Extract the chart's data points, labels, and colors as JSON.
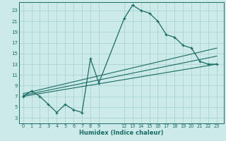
{
  "title": "",
  "xlabel": "Humidex (Indice chaleur)",
  "bg_color": "#cceae8",
  "grid_color": "#aad4d0",
  "line_color": "#1a6b65",
  "x_ticks": [
    0,
    1,
    2,
    3,
    4,
    5,
    6,
    7,
    8,
    9,
    12,
    13,
    14,
    15,
    16,
    17,
    18,
    19,
    20,
    21,
    22,
    23
  ],
  "y_ticks": [
    3,
    5,
    7,
    9,
    11,
    13,
    15,
    17,
    19,
    21,
    23
  ],
  "ylim": [
    2.0,
    24.5
  ],
  "xlim": [
    -0.5,
    23.8
  ],
  "curve1_x": [
    0,
    1,
    2,
    3,
    4,
    5,
    6,
    7,
    8,
    9,
    12,
    13,
    14,
    15,
    16,
    17,
    18,
    19,
    20,
    21,
    22,
    23
  ],
  "curve1_y": [
    7.0,
    8.0,
    7.0,
    5.5,
    4.0,
    5.5,
    4.5,
    4.0,
    14.0,
    9.5,
    21.5,
    24.0,
    23.0,
    22.5,
    21.0,
    18.5,
    18.0,
    16.5,
    16.0,
    13.5,
    13.0,
    13.0
  ],
  "line1_x": [
    0,
    23
  ],
  "line1_y": [
    7.5,
    16.0
  ],
  "line2_x": [
    0,
    23
  ],
  "line2_y": [
    7.2,
    14.5
  ],
  "line3_x": [
    0,
    23
  ],
  "line3_y": [
    7.0,
    13.0
  ]
}
